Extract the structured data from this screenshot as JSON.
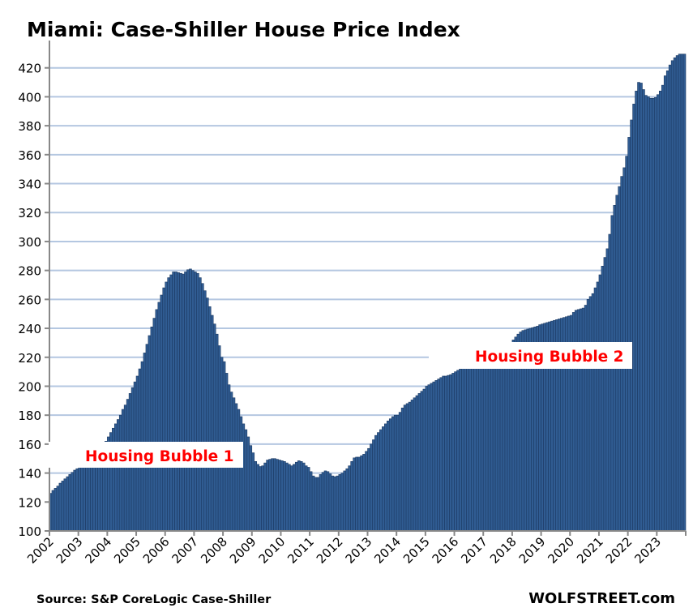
{
  "chart_data": {
    "type": "bar",
    "title": "Miami: Case-Shiller House Price Index",
    "xlabel": "",
    "ylabel": "",
    "ylim": [
      100,
      440
    ],
    "yticks": [
      100,
      120,
      140,
      160,
      180,
      200,
      220,
      240,
      260,
      280,
      300,
      320,
      340,
      360,
      380,
      400,
      420
    ],
    "xtick_labels": [
      "2002",
      "2003",
      "2004",
      "2005",
      "2006",
      "2007",
      "2008",
      "2009",
      "2010",
      "2011",
      "2012",
      "2013",
      "2014",
      "2015",
      "2016",
      "2017",
      "2018",
      "2019",
      "2020",
      "2021",
      "2022",
      "2023"
    ],
    "frequency": "monthly",
    "start": "2002-01",
    "end": "2023-12",
    "grid": true,
    "bar_color": "#305c92",
    "bar_edge_color": "#1c3a63",
    "grid_color": "#b4c7e1",
    "values": [
      126,
      128,
      129.5,
      131,
      133,
      134.5,
      136,
      137.5,
      139,
      140.5,
      142,
      143,
      144,
      145,
      146,
      147,
      148,
      149.5,
      151,
      153,
      155,
      157,
      159.5,
      162,
      165,
      168,
      171,
      174,
      177,
      180,
      184,
      187,
      191,
      195,
      199,
      203,
      207,
      212,
      217,
      223,
      229,
      235,
      241,
      247,
      253,
      258,
      263,
      268,
      272,
      275,
      277,
      279,
      279,
      278.5,
      278,
      277.5,
      279,
      280.5,
      281,
      280,
      279,
      278,
      275,
      271,
      266,
      261,
      255,
      249,
      243,
      236,
      228,
      220,
      217,
      209,
      201,
      196,
      192,
      188,
      184,
      179,
      174,
      170,
      165,
      159,
      154,
      148,
      146,
      144.5,
      145,
      147,
      149,
      149.5,
      150,
      150,
      149.5,
      149,
      148.5,
      148,
      147,
      146,
      145,
      146,
      147.5,
      148.5,
      148,
      147,
      145,
      144,
      141,
      138,
      137,
      137,
      139,
      140.5,
      141.5,
      141,
      139.5,
      138,
      137.5,
      138,
      139,
      140,
      141.5,
      143,
      145,
      148,
      150.5,
      151,
      151,
      152,
      153,
      155,
      157,
      160,
      163,
      166,
      168,
      170,
      172,
      174,
      176,
      177.5,
      179,
      180,
      180,
      182,
      185,
      187,
      188,
      189,
      190.5,
      192,
      193.5,
      195,
      196.5,
      198,
      200,
      201,
      202,
      203,
      204,
      205,
      206,
      207,
      207,
      207.5,
      208,
      209,
      210,
      211,
      212,
      213,
      214,
      215,
      216,
      217,
      218,
      219,
      220,
      221,
      222,
      223,
      223.5,
      224,
      225,
      226,
      226.5,
      227,
      228,
      228.5,
      229,
      230,
      232,
      234,
      236,
      237.5,
      238.5,
      239,
      239.5,
      240,
      240.5,
      241,
      241.5,
      242.5,
      243,
      243.5,
      244,
      244.5,
      245,
      245.5,
      246,
      246.5,
      247,
      247.5,
      248,
      248.5,
      249,
      251,
      252.5,
      253,
      253.5,
      254,
      256,
      260,
      262,
      264,
      268,
      272,
      277,
      283,
      289,
      295,
      305,
      318,
      325,
      332,
      338,
      345,
      351,
      359,
      372,
      384,
      395,
      404,
      410,
      409.5,
      405,
      401,
      400,
      399,
      399,
      399.5,
      401.5,
      404,
      408,
      414.5,
      418,
      422,
      425,
      427,
      428.5,
      429.5,
      429.5,
      429.5
    ],
    "annotations": [
      {
        "text": "Housing Bubble 1",
        "near": "2003-2008"
      },
      {
        "text": "Housing Bubble 2",
        "near": "2015-2022"
      }
    ]
  },
  "footer": {
    "source": "Source: S&P CoreLogic Case-Shiller",
    "brand": "WOLFSTREET.com"
  }
}
